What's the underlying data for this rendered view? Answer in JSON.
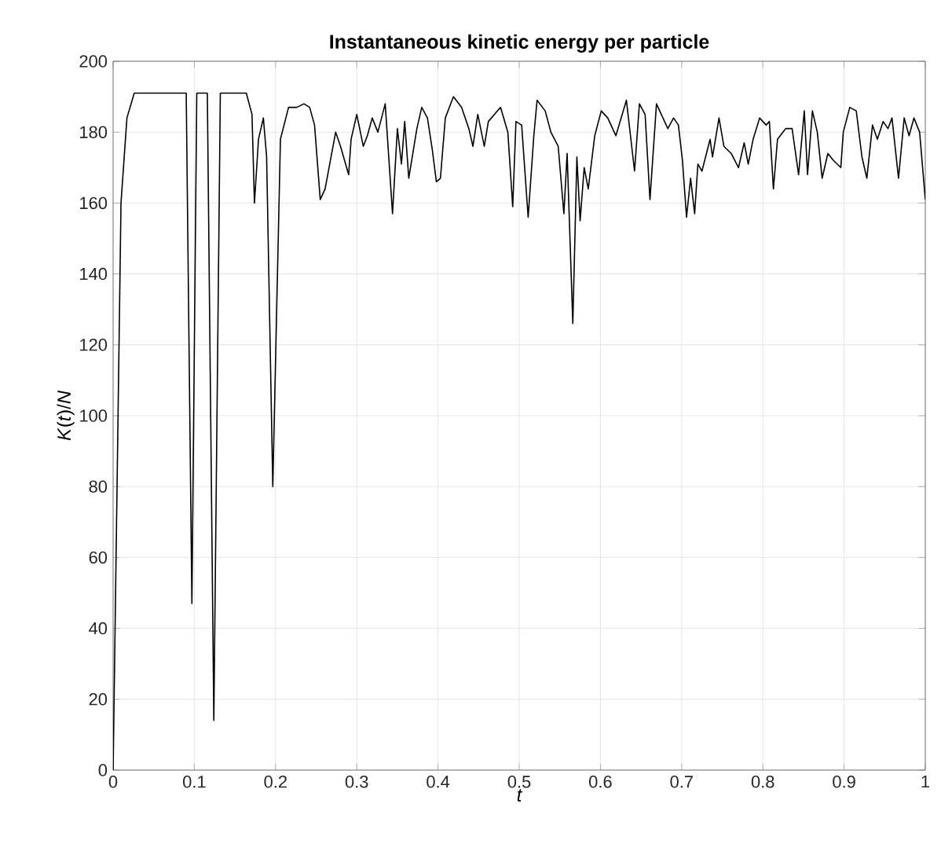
{
  "chart_data": {
    "type": "line",
    "title": "Instantaneous kinetic energy per particle",
    "xlabel": "t",
    "ylabel": "*K*(*t*)/*N*",
    "x": [
      0,
      0.0097,
      0.017,
      0.026,
      0.09,
      0.097,
      0.103,
      0.116,
      0.124,
      0.132,
      0.164,
      0.171,
      0.174,
      0.179,
      0.185,
      0.189,
      0.1966,
      0.206,
      0.216,
      0.226,
      0.235,
      0.242,
      0.248,
      0.255,
      0.261,
      0.274,
      0.28,
      0.29,
      0.293,
      0.3,
      0.308,
      0.313,
      0.319,
      0.326,
      0.335,
      0.344,
      0.35,
      0.355,
      0.359,
      0.364,
      0.374,
      0.38,
      0.387,
      0.393,
      0.398,
      0.403,
      0.409,
      0.419,
      0.429,
      0.438,
      0.443,
      0.449,
      0.457,
      0.462,
      0.477,
      0.486,
      0.492,
      0.496,
      0.503,
      0.511,
      0.518,
      0.522,
      0.532,
      0.539,
      0.548,
      0.555,
      0.559,
      0.566,
      0.571,
      0.575,
      0.58,
      0.585,
      0.593,
      0.601,
      0.609,
      0.619,
      0.632,
      0.642,
      0.648,
      0.655,
      0.661,
      0.669,
      0.677,
      0.683,
      0.69,
      0.696,
      0.701,
      0.706,
      0.711,
      0.716,
      0.72,
      0.725,
      0.735,
      0.738,
      0.746,
      0.752,
      0.761,
      0.77,
      0.777,
      0.782,
      0.788,
      0.796,
      0.804,
      0.808,
      0.813,
      0.818,
      0.828,
      0.836,
      0.844,
      0.851,
      0.855,
      0.861,
      0.867,
      0.873,
      0.88,
      0.887,
      0.896,
      0.899,
      0.907,
      0.915,
      0.922,
      0.928,
      0.935,
      0.941,
      0.948,
      0.954,
      0.959,
      0.967,
      0.974,
      0.98,
      0.986,
      0.993,
      1.0
    ],
    "values": [
      0,
      160,
      184,
      191,
      191,
      47,
      191,
      191,
      14,
      191,
      191,
      185,
      160,
      178,
      184,
      173,
      80,
      178,
      187,
      187,
      188,
      187,
      182,
      161,
      164,
      180,
      176,
      168,
      178,
      185,
      176,
      179,
      184,
      180,
      188,
      157,
      181,
      171,
      183,
      167,
      181,
      187,
      184,
      175,
      166,
      167,
      184,
      190,
      187,
      181,
      176,
      185,
      176,
      183,
      187,
      180,
      159,
      183,
      182,
      156,
      179,
      189,
      186,
      180,
      176,
      157,
      174,
      126,
      173,
      155,
      170,
      164,
      179,
      186,
      184,
      179,
      189,
      169,
      188,
      185,
      161,
      188,
      184,
      181,
      184,
      182,
      172,
      156,
      167,
      157,
      171,
      169,
      178,
      173,
      184,
      176,
      174,
      170,
      177,
      171,
      178,
      184,
      182,
      183,
      164,
      178,
      181,
      181,
      168,
      186,
      168,
      186,
      180,
      167,
      174,
      172,
      170,
      180,
      187,
      186,
      173,
      167,
      182,
      178,
      183,
      181,
      184,
      167,
      184,
      179,
      184,
      180,
      161
    ],
    "color": "#000000",
    "xlim": [
      0,
      1
    ],
    "ylim": [
      0,
      200
    ],
    "xticks": [
      0,
      0.1,
      0.2,
      0.3,
      0.4,
      0.5,
      0.6,
      0.7,
      0.8,
      0.9,
      1
    ],
    "yticks": [
      0,
      20,
      40,
      60,
      80,
      100,
      120,
      140,
      160,
      180,
      200
    ],
    "grid": true
  }
}
